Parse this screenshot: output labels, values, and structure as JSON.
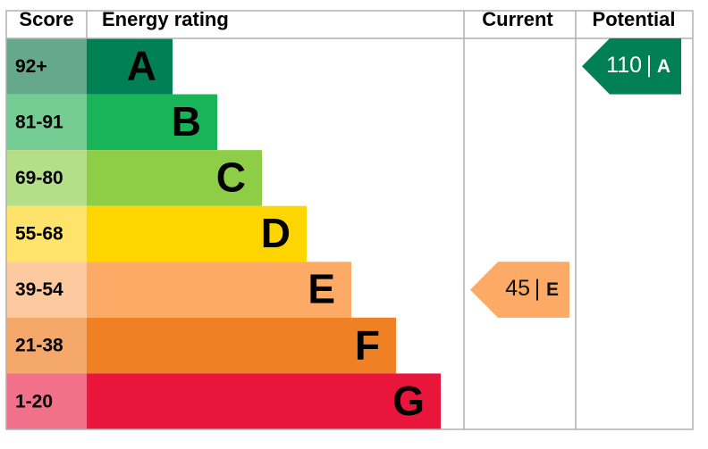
{
  "headers": {
    "score": "Score",
    "rating": "Energy rating",
    "current": "Current",
    "potential": "Potential"
  },
  "bands": [
    {
      "score": "92+",
      "letter": "A",
      "color": "#008054",
      "score_color": "#66a88a"
    },
    {
      "score": "81-91",
      "letter": "B",
      "color": "#19b459",
      "score_color": "#75cc93"
    },
    {
      "score": "69-80",
      "letter": "C",
      "color": "#8dce46",
      "score_color": "#b5de88"
    },
    {
      "score": "55-68",
      "letter": "D",
      "color": "#ffd500",
      "score_color": "#ffe36b"
    },
    {
      "score": "39-54",
      "letter": "E",
      "color": "#fcaa65",
      "score_color": "#fdcaa0"
    },
    {
      "score": "21-38",
      "letter": "F",
      "color": "#ef8023",
      "score_color": "#f4a96b"
    },
    {
      "score": "1-20",
      "letter": "G",
      "color": "#e9153b",
      "score_color": "#f07189"
    }
  ],
  "current": {
    "value": 45,
    "letter": "E"
  },
  "potential": {
    "value": 110,
    "letter": "A"
  }
}
